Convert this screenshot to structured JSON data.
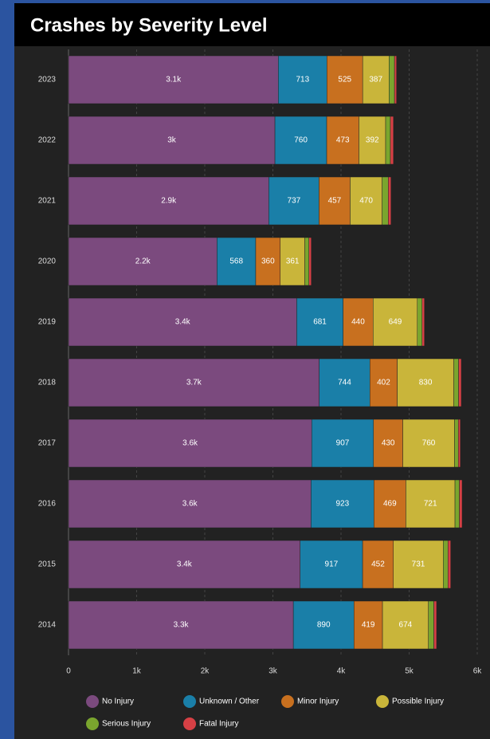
{
  "chart_data": {
    "type": "bar",
    "orientation": "horizontal",
    "stacked": true,
    "title": "Crashes by Severity Level",
    "categories": [
      "2023",
      "2022",
      "2021",
      "2020",
      "2019",
      "2018",
      "2017",
      "2016",
      "2015",
      "2014"
    ],
    "series": [
      {
        "name": "No Injury",
        "color": "#7b4a7e",
        "values": [
          3080,
          3030,
          2940,
          2180,
          3350,
          3680,
          3570,
          3560,
          3400,
          3300
        ],
        "value_labels": [
          "3.1k",
          "3k",
          "2.9k",
          "2.2k",
          "3.4k",
          "3.7k",
          "3.6k",
          "3.6k",
          "3.4k",
          "3.3k"
        ]
      },
      {
        "name": "Unknown / Other",
        "color": "#1a7fa8",
        "values": [
          713,
          760,
          737,
          568,
          681,
          744,
          907,
          923,
          917,
          890
        ]
      },
      {
        "name": "Minor Injury",
        "color": "#c8701f",
        "values": [
          525,
          473,
          457,
          360,
          440,
          402,
          430,
          469,
          452,
          419
        ]
      },
      {
        "name": "Possible Injury",
        "color": "#c9b53a",
        "values": [
          387,
          392,
          470,
          361,
          649,
          830,
          760,
          721,
          731,
          674
        ]
      },
      {
        "name": "Serious Injury",
        "color": "#7aa52e",
        "values": [
          80,
          70,
          90,
          60,
          70,
          70,
          55,
          65,
          70,
          80
        ]
      },
      {
        "name": "Fatal Injury",
        "color": "#d64045",
        "values": [
          30,
          45,
          40,
          35,
          35,
          40,
          30,
          40,
          40,
          40
        ]
      }
    ],
    "xlim": [
      0,
      6000
    ],
    "xticks": [
      0,
      {
        "value": 1000,
        "label": "1k"
      },
      {
        "value": 2000,
        "label": "2k"
      },
      {
        "value": 3000,
        "label": "3k"
      },
      {
        "value": 4000,
        "label": "4k"
      },
      {
        "value": 5000,
        "label": "5k"
      },
      {
        "value": 6000,
        "label": "6k"
      }
    ],
    "grid": true,
    "legend": "bottom"
  }
}
